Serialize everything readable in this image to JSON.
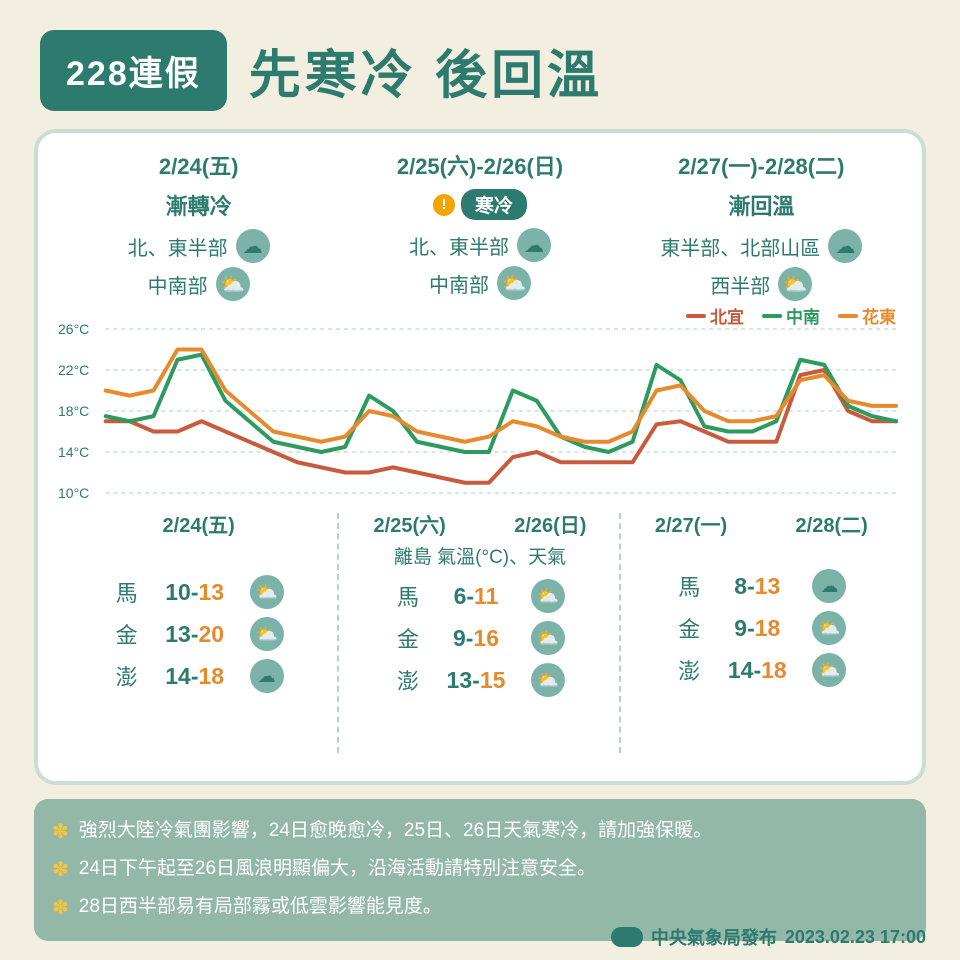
{
  "colors": {
    "bg": "#f3efe0",
    "panel_border": "#c9dfd4",
    "teal": "#2d7a6f",
    "warn": "#f2a400",
    "note_bg": "#93b8a8",
    "series_beiyi": "#c85a3e",
    "series_zhongnan": "#2d9a5e",
    "series_huadong": "#e68a2e"
  },
  "badge": "228連假",
  "title": "先寒冷 後回溫",
  "top": [
    {
      "date": "2/24(五)",
      "cond": "漸轉冷",
      "warn": false,
      "rows": [
        {
          "region": "北、東半部",
          "icon": "☁"
        },
        {
          "region": "中南部",
          "icon": "⛅"
        }
      ]
    },
    {
      "date": "2/25(六)-2/26(日)",
      "cond": "寒冷",
      "warn": true,
      "rows": [
        {
          "region": "北、東半部",
          "icon": "☁"
        },
        {
          "region": "中南部",
          "icon": "⛅"
        }
      ]
    },
    {
      "date": "2/27(一)-2/28(二)",
      "cond": "漸回溫",
      "warn": false,
      "rows": [
        {
          "region": "東半部、北部山區",
          "icon": "☁"
        },
        {
          "region": "西半部",
          "icon": "⛅"
        }
      ]
    }
  ],
  "legend": [
    {
      "label": "北宜",
      "color": "#c85a3e"
    },
    {
      "label": "中南",
      "color": "#2d9a5e"
    },
    {
      "label": "花東",
      "color": "#e68a2e"
    }
  ],
  "chart": {
    "type": "line",
    "ymin": 10,
    "ymax": 26,
    "ytick_step": 4,
    "yticks": [
      "10°C",
      "14°C",
      "18°C",
      "22°C",
      "26°C"
    ],
    "line_width": 4,
    "grid_color": "#c9dfd4",
    "series": {
      "beiyi": [
        17,
        17,
        16,
        16,
        17,
        16,
        15,
        14,
        13,
        12.5,
        12,
        12,
        12.5,
        12,
        11.5,
        11,
        11,
        13.5,
        14,
        13,
        13,
        13,
        13,
        16.7,
        17,
        16,
        15,
        15,
        15,
        21.5,
        22,
        18,
        17,
        17
      ],
      "zhongnan": [
        17.5,
        17,
        17.5,
        23,
        23.5,
        19,
        17,
        15,
        14.5,
        14,
        14.5,
        19.5,
        18,
        15,
        14.5,
        14,
        14,
        20,
        19,
        15.5,
        14.5,
        14,
        15,
        22.5,
        21,
        16.5,
        16,
        16,
        17,
        23,
        22.5,
        18.5,
        17.5,
        17
      ],
      "huadong": [
        20,
        19.5,
        20,
        24,
        24,
        20,
        18,
        16,
        15.5,
        15,
        15.5,
        18,
        17.5,
        16,
        15.5,
        15,
        15.5,
        17,
        16.5,
        15.5,
        15,
        15,
        16,
        20,
        20.5,
        18,
        17,
        17,
        17.5,
        21,
        21.5,
        19,
        18.5,
        18.5
      ]
    }
  },
  "bottom_title": "離島 氣溫(°C)、天氣",
  "bottom": [
    {
      "dates": [
        "2/24(五)"
      ],
      "rows": [
        {
          "nm": "馬",
          "lo": 10,
          "hi": 13,
          "icon": "⛅"
        },
        {
          "nm": "金",
          "lo": 13,
          "hi": 20,
          "icon": "⛅"
        },
        {
          "nm": "澎",
          "lo": 14,
          "hi": 18,
          "icon": "☁"
        }
      ]
    },
    {
      "dates": [
        "2/25(六)",
        "2/26(日)"
      ],
      "rows": [
        {
          "nm": "馬",
          "lo": 6,
          "hi": 11,
          "icon": "⛅"
        },
        {
          "nm": "金",
          "lo": 9,
          "hi": 16,
          "icon": "⛅"
        },
        {
          "nm": "澎",
          "lo": 13,
          "hi": 15,
          "icon": "⛅"
        }
      ]
    },
    {
      "dates": [
        "2/27(一)",
        "2/28(二)"
      ],
      "rows": [
        {
          "nm": "馬",
          "lo": 8,
          "hi": 13,
          "icon": "☁"
        },
        {
          "nm": "金",
          "lo": 9,
          "hi": 18,
          "icon": "⛅"
        },
        {
          "nm": "澎",
          "lo": 14,
          "hi": 18,
          "icon": "⛅"
        }
      ]
    }
  ],
  "notes": [
    "強烈大陸冷氣團影響，24日愈晚愈冷，25日、26日天氣寒冷，請加強保暖。",
    "24日下午起至26日風浪明顯偏大，沿海活動請特別注意安全。",
    "28日西半部易有局部霧或低雲影響能見度。"
  ],
  "footer": {
    "org": "中央氣象局發布",
    "time": "2023.02.23 17:00"
  }
}
